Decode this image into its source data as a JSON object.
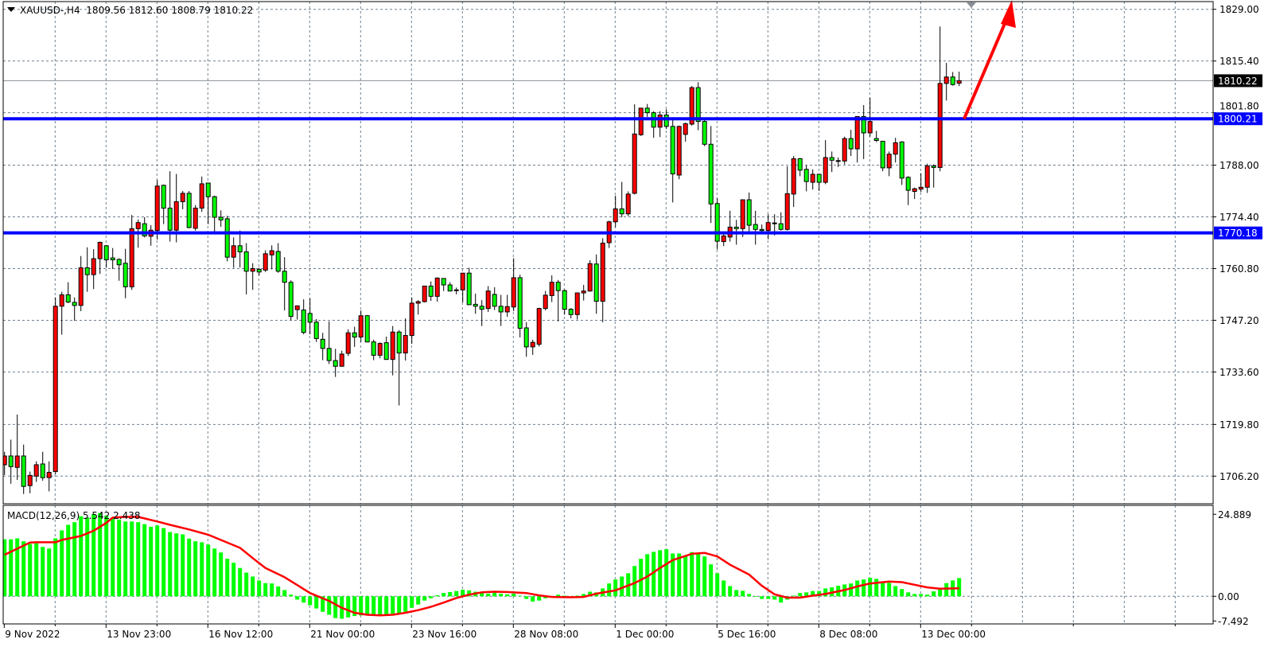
{
  "header": {
    "symbol": "XAUUSD-,H4",
    "open": "1809.56",
    "high": "1812.60",
    "low": "1808.79",
    "close": "1810.22"
  },
  "colors": {
    "bull_candle": "#ff0000",
    "bear_candle": "#00ff00",
    "wick": "#000000",
    "level_line": "#0000ff",
    "macd_histogram": "#00ff00",
    "macd_signal": "#ff0000",
    "arrow": "#ff0000",
    "grid": "#708090",
    "current_price_label_bg": "#000000"
  },
  "chart_data": {
    "type": "candlestick",
    "title": "",
    "grid": true,
    "price_axis": {
      "ticks": [
        "1829.00",
        "1815.40",
        "1801.80",
        "1788.00",
        "1774.40",
        "1760.80",
        "1747.20",
        "1733.60",
        "1719.80",
        "1706.20"
      ],
      "range": [
        1706.2,
        1829.0
      ]
    },
    "time_axis": {
      "labels": [
        "9 Nov 2022",
        "13 Nov 23:00",
        "16 Nov 12:00",
        "21 Nov 00:00",
        "23 Nov 16:00",
        "28 Nov 08:00",
        "1 Dec 00:00",
        "5 Dec 16:00",
        "8 Dec 08:00",
        "13 Dec 00:00"
      ],
      "bars_per_label": 16
    },
    "current_price": "1810.22",
    "horizontal_levels": [
      {
        "label": "1800.21",
        "value": 1800.21
      },
      {
        "label": "1770.18",
        "value": 1770.18
      }
    ],
    "annotation": {
      "type": "arrow",
      "direction": "up",
      "from_price": 1800.21
    },
    "ohlc": [
      [
        1709.2,
        1712.6,
        1706.5,
        1711.5
      ],
      [
        1711.5,
        1715.8,
        1704.2,
        1708.7
      ],
      [
        1708.5,
        1722.4,
        1705.2,
        1711.5
      ],
      [
        1711.5,
        1714.5,
        1701.5,
        1703.5
      ],
      [
        1703.7,
        1707.4,
        1701.7,
        1706.4
      ],
      [
        1706.2,
        1710.1,
        1704.7,
        1709.2
      ],
      [
        1709.4,
        1712.6,
        1705.0,
        1705.8
      ],
      [
        1705.8,
        1710.1,
        1702.2,
        1707.2
      ],
      [
        1707.4,
        1753.2,
        1706.7,
        1750.9
      ],
      [
        1750.9,
        1754.7,
        1743.4,
        1753.9
      ],
      [
        1753.9,
        1757.2,
        1751.7,
        1752.0
      ],
      [
        1751.9,
        1753.2,
        1747.1,
        1751.1
      ],
      [
        1751.1,
        1764.1,
        1749.6,
        1761.0
      ],
      [
        1761.0,
        1766.4,
        1754.7,
        1759.2
      ],
      [
        1759.2,
        1765.9,
        1755.4,
        1763.4
      ],
      [
        1763.4,
        1767.9,
        1759.4,
        1767.7
      ],
      [
        1766.8,
        1767.0,
        1761.0,
        1763.1
      ],
      [
        1763.6,
        1766.2,
        1760.7,
        1763.1
      ],
      [
        1763.2,
        1763.5,
        1757.6,
        1761.8
      ],
      [
        1762.2,
        1766.0,
        1753.0,
        1756.0
      ],
      [
        1756.0,
        1774.9,
        1755.2,
        1771.3
      ],
      [
        1771.3,
        1773.7,
        1766.3,
        1772.9
      ],
      [
        1772.6,
        1774.3,
        1769.0,
        1769.4
      ],
      [
        1769.3,
        1772.2,
        1766.8,
        1770.9
      ],
      [
        1770.8,
        1784.1,
        1768.4,
        1782.5
      ],
      [
        1782.7,
        1782.9,
        1772.5,
        1776.7
      ],
      [
        1776.7,
        1786.4,
        1767.9,
        1770.9
      ],
      [
        1770.9,
        1785.7,
        1767.7,
        1778.4
      ],
      [
        1778.4,
        1781.2,
        1776.4,
        1780.6
      ],
      [
        1780.6,
        1781.2,
        1771.4,
        1771.6
      ],
      [
        1771.4,
        1777.5,
        1770.8,
        1776.7
      ],
      [
        1776.7,
        1785.0,
        1775.7,
        1783.1
      ],
      [
        1783.3,
        1783.4,
        1772.5,
        1779.7
      ],
      [
        1779.7,
        1780.0,
        1770.5,
        1774.3
      ],
      [
        1774.3,
        1776.1,
        1771.8,
        1773.6
      ],
      [
        1773.9,
        1774.7,
        1762.7,
        1763.8
      ],
      [
        1763.8,
        1769.0,
        1761.0,
        1766.8
      ],
      [
        1766.8,
        1770.8,
        1761.1,
        1765.2
      ],
      [
        1765.2,
        1767.5,
        1754.0,
        1760.1
      ],
      [
        1760.1,
        1762.2,
        1755.2,
        1760.8
      ],
      [
        1760.6,
        1761.0,
        1759.0,
        1759.9
      ],
      [
        1760.4,
        1765.6,
        1759.9,
        1764.7
      ],
      [
        1764.4,
        1766.9,
        1760.6,
        1765.5
      ],
      [
        1765.3,
        1767.5,
        1759.7,
        1760.1
      ],
      [
        1760.1,
        1763.8,
        1749.8,
        1757.2
      ],
      [
        1757.2,
        1757.7,
        1747.2,
        1748.2
      ],
      [
        1750.0,
        1751.0,
        1747.4,
        1751.0
      ],
      [
        1749.9,
        1752.7,
        1743.5,
        1744.0
      ],
      [
        1749.0,
        1753.0,
        1743.5,
        1746.7
      ],
      [
        1746.7,
        1747.5,
        1741.5,
        1742.4
      ],
      [
        1742.2,
        1743.9,
        1736.7,
        1739.8
      ],
      [
        1739.8,
        1746.9,
        1735.7,
        1736.6
      ],
      [
        1736.6,
        1739.7,
        1732.3,
        1735.1
      ],
      [
        1735.1,
        1739.2,
        1735.0,
        1738.3
      ],
      [
        1738.5,
        1744.8,
        1737.8,
        1743.9
      ],
      [
        1743.9,
        1745.5,
        1740.2,
        1742.8
      ],
      [
        1742.8,
        1749.8,
        1741.5,
        1748.4
      ],
      [
        1748.4,
        1748.6,
        1741.4,
        1741.5
      ],
      [
        1741.5,
        1742.1,
        1736.7,
        1738.0
      ],
      [
        1738.0,
        1741.4,
        1737.2,
        1741.1
      ],
      [
        1741.3,
        1742.9,
        1736.8,
        1736.9
      ],
      [
        1736.9,
        1745.7,
        1732.7,
        1744.1
      ],
      [
        1744.1,
        1744.6,
        1724.8,
        1738.6
      ],
      [
        1738.6,
        1747.7,
        1736.6,
        1743.2
      ],
      [
        1743.2,
        1753.2,
        1741.0,
        1751.7
      ],
      [
        1751.7,
        1752.5,
        1748.7,
        1752.1
      ],
      [
        1752.1,
        1756.3,
        1751.9,
        1756.2
      ],
      [
        1756.2,
        1757.4,
        1752.3,
        1753.5
      ],
      [
        1753.5,
        1758.5,
        1752.1,
        1758.3
      ],
      [
        1758.2,
        1758.3,
        1754.9,
        1756.5
      ],
      [
        1756.5,
        1757.2,
        1754.9,
        1754.9
      ],
      [
        1755.2,
        1755.8,
        1754.0,
        1755.2
      ],
      [
        1755.2,
        1759.6,
        1751.9,
        1759.6
      ],
      [
        1759.6,
        1761.0,
        1751.2,
        1751.3
      ],
      [
        1751.4,
        1754.2,
        1748.9,
        1750.9
      ],
      [
        1750.9,
        1752.5,
        1745.7,
        1750.1
      ],
      [
        1750.3,
        1756.2,
        1749.4,
        1754.9
      ],
      [
        1754.0,
        1755.9,
        1749.9,
        1750.9
      ],
      [
        1750.9,
        1753.9,
        1745.7,
        1749.4
      ],
      [
        1749.4,
        1753.9,
        1748.1,
        1750.8
      ],
      [
        1750.7,
        1763.5,
        1749.6,
        1758.4
      ],
      [
        1758.4,
        1759.2,
        1742.7,
        1745.1
      ],
      [
        1745.2,
        1746.7,
        1737.6,
        1740.2
      ],
      [
        1740.2,
        1742.1,
        1738.1,
        1741.4
      ],
      [
        1740.9,
        1750.5,
        1740.3,
        1750.3
      ],
      [
        1750.3,
        1754.9,
        1749.8,
        1753.8
      ],
      [
        1753.7,
        1759.0,
        1752.0,
        1757.2
      ],
      [
        1757.2,
        1757.8,
        1746.9,
        1755.0
      ],
      [
        1755.0,
        1755.3,
        1748.7,
        1750.1
      ],
      [
        1750.1,
        1750.4,
        1747.7,
        1748.7
      ],
      [
        1748.7,
        1754.4,
        1747.4,
        1754.4
      ],
      [
        1754.4,
        1756.5,
        1752.4,
        1754.9
      ],
      [
        1754.9,
        1763.0,
        1754.7,
        1762.1
      ],
      [
        1762.0,
        1764.5,
        1748.9,
        1752.2
      ],
      [
        1752.2,
        1768.8,
        1746.7,
        1767.5
      ],
      [
        1767.6,
        1773.4,
        1766.2,
        1773.1
      ],
      [
        1773.1,
        1780.0,
        1771.7,
        1776.5
      ],
      [
        1776.5,
        1783.6,
        1774.3,
        1775.2
      ],
      [
        1775.2,
        1781.1,
        1774.6,
        1780.4
      ],
      [
        1780.6,
        1804.0,
        1780.3,
        1796.2
      ],
      [
        1796.0,
        1803.0,
        1795.7,
        1803.0
      ],
      [
        1803.0,
        1804.1,
        1800.7,
        1801.8
      ],
      [
        1801.8,
        1802.2,
        1795.2,
        1798.0
      ],
      [
        1798.0,
        1802.2,
        1795.4,
        1801.2
      ],
      [
        1801.2,
        1802.7,
        1797.5,
        1798.2
      ],
      [
        1798.2,
        1800.6,
        1778.2,
        1785.7
      ],
      [
        1785.4,
        1798.4,
        1784.3,
        1798.2
      ],
      [
        1796.1,
        1799.2,
        1794.2,
        1798.9
      ],
      [
        1798.8,
        1808.8,
        1798.4,
        1808.4
      ],
      [
        1808.4,
        1809.8,
        1797.2,
        1799.5
      ],
      [
        1799.5,
        1800.0,
        1793.0,
        1793.5
      ],
      [
        1793.5,
        1798.3,
        1772.8,
        1777.8
      ],
      [
        1777.9,
        1779.3,
        1765.8,
        1768.0
      ],
      [
        1767.9,
        1769.9,
        1766.7,
        1769.4
      ],
      [
        1769.1,
        1776.0,
        1767.9,
        1771.7
      ],
      [
        1771.7,
        1773.6,
        1767.1,
        1771.3
      ],
      [
        1771.3,
        1778.9,
        1769.1,
        1778.9
      ],
      [
        1778.9,
        1780.8,
        1770.4,
        1772.2
      ],
      [
        1772.4,
        1776.0,
        1767.1,
        1771.1
      ],
      [
        1771.1,
        1772.4,
        1770.4,
        1770.8
      ],
      [
        1770.8,
        1775.1,
        1768.5,
        1772.9
      ],
      [
        1772.8,
        1775.1,
        1769.5,
        1772.8
      ],
      [
        1772.6,
        1775.6,
        1770.8,
        1771.1
      ],
      [
        1771.1,
        1787.7,
        1770.8,
        1780.5
      ],
      [
        1780.4,
        1790.4,
        1777.0,
        1789.7
      ],
      [
        1789.7,
        1789.9,
        1785.1,
        1786.7
      ],
      [
        1786.9,
        1788.0,
        1781.1,
        1783.7
      ],
      [
        1783.5,
        1786.9,
        1781.6,
        1785.6
      ],
      [
        1785.6,
        1785.6,
        1781.2,
        1783.5
      ],
      [
        1783.5,
        1794.6,
        1783.0,
        1790.0
      ],
      [
        1790.0,
        1791.6,
        1786.2,
        1789.3
      ],
      [
        1789.2,
        1790.0,
        1787.5,
        1789.2
      ],
      [
        1789.1,
        1795.5,
        1788.2,
        1795.0
      ],
      [
        1795.0,
        1797.3,
        1790.4,
        1792.3
      ],
      [
        1792.3,
        1800.8,
        1788.7,
        1800.8
      ],
      [
        1800.8,
        1803.8,
        1789.6,
        1796.5
      ],
      [
        1796.5,
        1805.7,
        1795.5,
        1799.5
      ],
      [
        1795.0,
        1797.0,
        1794.1,
        1794.5
      ],
      [
        1794.3,
        1794.3,
        1786.4,
        1787.3
      ],
      [
        1787.3,
        1791.6,
        1785.1,
        1790.9
      ],
      [
        1790.9,
        1795.2,
        1788.7,
        1793.9
      ],
      [
        1794.1,
        1794.3,
        1782.8,
        1784.6
      ],
      [
        1784.8,
        1785.1,
        1777.5,
        1781.4
      ],
      [
        1781.1,
        1782.1,
        1779.1,
        1781.8
      ],
      [
        1781.7,
        1785.9,
        1780.9,
        1782.2
      ],
      [
        1782.2,
        1788.4,
        1780.7,
        1787.8
      ],
      [
        1787.8,
        1788.2,
        1782.1,
        1787.4
      ],
      [
        1787.4,
        1824.5,
        1786.4,
        1809.5
      ],
      [
        1809.5,
        1814.9,
        1805.0,
        1811.2
      ],
      [
        1811.2,
        1812.5,
        1808.9,
        1809.2
      ],
      [
        1809.56,
        1812.6,
        1808.79,
        1810.22
      ]
    ],
    "macd": {
      "label": "MACD(12,26,9) 5.542 2.438",
      "params": "12,26,9",
      "axis_ticks": [
        "24.889",
        "0.00",
        "-7.492"
      ],
      "range": [
        -7.492,
        24.889
      ],
      "histogram": [
        17.3,
        17.3,
        17.6,
        16.7,
        15.9,
        16.1,
        15.0,
        14.5,
        17.6,
        20.0,
        21.7,
        22.5,
        24.3,
        23.9,
        25.0,
        25.3,
        24.5,
        23.7,
        23.3,
        22.7,
        22.7,
        22.5,
        21.9,
        21.1,
        21.5,
        20.7,
        19.5,
        19.1,
        18.8,
        17.5,
        16.7,
        16.4,
        15.7,
        14.5,
        13.3,
        11.4,
        10.2,
        8.6,
        7.2,
        6.0,
        4.8,
        4.0,
        3.9,
        3.0,
        1.9,
        0.5,
        -1.0,
        -1.9,
        -2.7,
        -3.7,
        -4.7,
        -5.6,
        -6.6,
        -6.8,
        -6.4,
        -6.0,
        -5.8,
        -5.5,
        -5.5,
        -5.5,
        -5.8,
        -5.3,
        -5.2,
        -4.7,
        -3.5,
        -2.5,
        -1.3,
        -0.6,
        0.3,
        1.0,
        1.3,
        1.6,
        2.0,
        1.8,
        1.4,
        1.0,
        0.8,
        1.1,
        0.8,
        0.6,
        0.8,
        0.2,
        -0.8,
        -1.6,
        -1.3,
        -0.6,
        0.0,
        0.5,
        0.2,
        0.0,
        0.2,
        0.7,
        1.4,
        1.2,
        2.4,
        3.9,
        5.1,
        6.0,
        7.0,
        9.2,
        11.4,
        12.8,
        13.5,
        14.0,
        14.3,
        13.0,
        13.0,
        12.4,
        13.4,
        13.2,
        12.1,
        9.7,
        7.0,
        4.8,
        3.1,
        1.9,
        1.7,
        0.7,
        0.0,
        -0.8,
        -0.8,
        -1.0,
        -1.9,
        -1.0,
        0.2,
        1.0,
        1.2,
        1.6,
        1.6,
        2.4,
        2.7,
        3.2,
        3.6,
        3.9,
        4.8,
        5.1,
        5.6,
        5.3,
        4.1,
        4.1,
        3.1,
        2.2,
        1.2,
        0.7,
        0.7,
        0.5,
        1.5,
        2.6,
        4.0,
        4.8,
        5.542
      ],
      "signal_points": [
        [
          0,
          12.6
        ],
        [
          4,
          16.3
        ],
        [
          5,
          16.4
        ],
        [
          8,
          16.4
        ],
        [
          9,
          17.1
        ],
        [
          12,
          18.3
        ],
        [
          14,
          19.9
        ],
        [
          16,
          22.3
        ],
        [
          17,
          23.9
        ],
        [
          19,
          24.1
        ],
        [
          21,
          24.1
        ],
        [
          24,
          22.7
        ],
        [
          26,
          21.7
        ],
        [
          29,
          20.3
        ],
        [
          32,
          18.7
        ],
        [
          34,
          17.1
        ],
        [
          37,
          14.7
        ],
        [
          39,
          11.6
        ],
        [
          41,
          8.6
        ],
        [
          44,
          5.8
        ],
        [
          46,
          3.4
        ],
        [
          48,
          1.0
        ],
        [
          51,
          -1.4
        ],
        [
          53,
          -3.5
        ],
        [
          55,
          -5.0
        ],
        [
          57,
          -5.6
        ],
        [
          59,
          -5.8
        ],
        [
          61,
          -5.6
        ],
        [
          63,
          -5.0
        ],
        [
          65,
          -4.2
        ],
        [
          67,
          -3.2
        ],
        [
          69,
          -1.9
        ],
        [
          71,
          -0.5
        ],
        [
          73,
          0.5
        ],
        [
          75,
          1.2
        ],
        [
          77,
          1.4
        ],
        [
          79,
          1.3
        ],
        [
          82,
          1.0
        ],
        [
          84,
          0.3
        ],
        [
          86,
          -0.2
        ],
        [
          89,
          -0.3
        ],
        [
          91,
          -0.2
        ],
        [
          93,
          0.8
        ],
        [
          96,
          1.8
        ],
        [
          99,
          4.0
        ],
        [
          101,
          6.0
        ],
        [
          103,
          8.6
        ],
        [
          105,
          11.0
        ],
        [
          108,
          12.9
        ],
        [
          110,
          13.2
        ],
        [
          112,
          12.1
        ],
        [
          114,
          9.6
        ],
        [
          117,
          6.6
        ],
        [
          119,
          3.2
        ],
        [
          121,
          0.6
        ],
        [
          123,
          -0.4
        ],
        [
          125,
          -0.4
        ],
        [
          127,
          0.2
        ],
        [
          129,
          0.7
        ],
        [
          132,
          1.9
        ],
        [
          134,
          3.0
        ],
        [
          136,
          3.9
        ],
        [
          139,
          4.5
        ],
        [
          141,
          4.3
        ],
        [
          143,
          3.5
        ],
        [
          145,
          2.7
        ],
        [
          147,
          2.3
        ],
        [
          150,
          2.438
        ]
      ]
    }
  }
}
